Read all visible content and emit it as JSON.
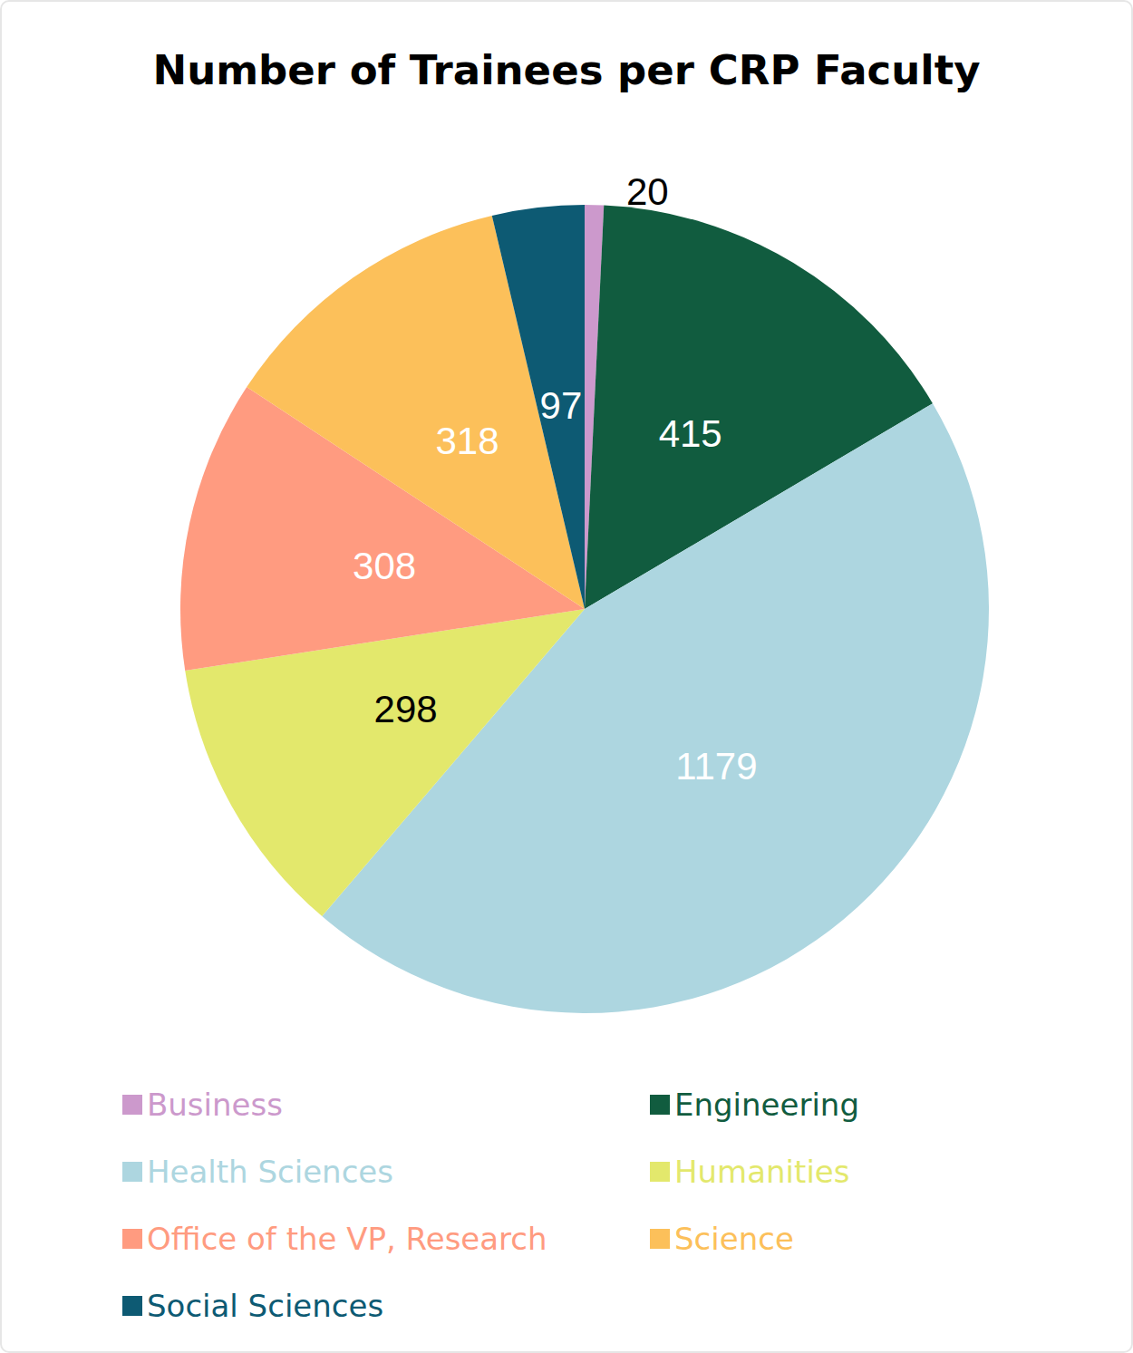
{
  "chart_data": {
    "type": "pie",
    "title": "Number of Trainees per CRP Faculty",
    "categories": [
      "Business",
      "Engineering",
      "Health Sciences",
      "Humanities",
      "Office of the VP, Research",
      "Science",
      "Social Sciences"
    ],
    "values": [
      20,
      415,
      1179,
      298,
      308,
      318,
      97
    ],
    "colors": [
      "#cc99cc",
      "#115c3f",
      "#add6e0",
      "#e3e86c",
      "#ff9b80",
      "#fcc05a",
      "#0d5a73"
    ],
    "data_labels": true,
    "legend": "bottom"
  }
}
